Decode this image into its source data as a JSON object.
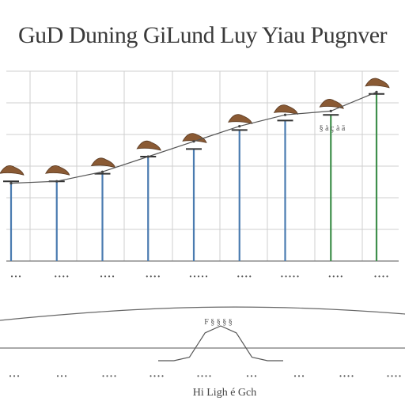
{
  "chart_data": [
    {
      "type": "bar",
      "title": "GuD Duning GiLund Luy Yiau Pugnver",
      "categories": [
        "• • •",
        "• • • •",
        "• • • •",
        "• • • •",
        "• • • • •",
        "• • • •",
        "• • • • •",
        "• • • •",
        "• • • •"
      ],
      "values": [
        42,
        42,
        46,
        55,
        59,
        69,
        74,
        77,
        88
      ],
      "trend": [
        41,
        42,
        47,
        55,
        63,
        71,
        77,
        79,
        89
      ],
      "annotation": "§ à ç à ä",
      "ylim": [
        0,
        100
      ],
      "grid": true,
      "colors": {
        "blue": "#4a7bb0",
        "green": "#3f8f4c",
        "trend": "#555555",
        "marker": "#8a5a34"
      }
    },
    {
      "type": "line",
      "annotation": "F § § § §",
      "xlabel": "Hi Ligh é Gch",
      "categories": [
        "• • •",
        "• • •",
        "• • • •",
        "• • • •",
        "• • • •",
        "• • •",
        "• • •",
        "• • • •",
        "• • • •"
      ],
      "curve_x": [
        0,
        1,
        2,
        3,
        4,
        5,
        6,
        7,
        8
      ],
      "curve_y": [
        0,
        0,
        1,
        8,
        10,
        8,
        1,
        0,
        0
      ],
      "colors": {
        "line": "#555555"
      }
    }
  ]
}
